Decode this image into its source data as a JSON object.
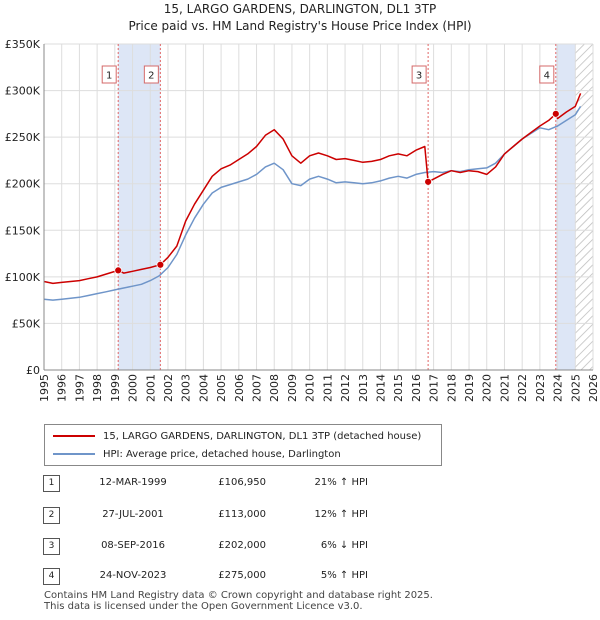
{
  "title_line1": "15, LARGO GARDENS, DARLINGTON, DL1 3TP",
  "title_line2": "Price paid vs. HM Land Registry's House Price Index (HPI)",
  "colors": {
    "property": "#cc0000",
    "hpi": "#6f95c9",
    "shade": "#dde6f6",
    "grid": "#dddddd",
    "vline": "#e06666"
  },
  "chart_data": {
    "type": "line",
    "xlim": [
      1995,
      2026
    ],
    "ylim": [
      0,
      350000
    ],
    "y_ticks": [
      0,
      50000,
      100000,
      150000,
      200000,
      250000,
      300000,
      350000
    ],
    "y_tick_labels": [
      "£0",
      "£50K",
      "£100K",
      "£150K",
      "£200K",
      "£250K",
      "£300K",
      "£350K"
    ],
    "x_ticks": [
      1995,
      1996,
      1997,
      1998,
      1999,
      2000,
      2001,
      2002,
      2003,
      2004,
      2005,
      2006,
      2007,
      2008,
      2009,
      2010,
      2011,
      2012,
      2013,
      2014,
      2015,
      2016,
      2017,
      2018,
      2019,
      2020,
      2021,
      2022,
      2023,
      2024,
      2025,
      2026
    ],
    "shaded_ranges": [
      [
        1999.19,
        2001.57
      ],
      [
        2023.9,
        2025.0
      ]
    ],
    "hatched_range": [
      2025.0,
      2026
    ],
    "series": [
      {
        "name": "15, LARGO GARDENS, DARLINGTON, DL1 3TP (detached house)",
        "color": "#cc0000",
        "x": [
          1995.0,
          1995.5,
          1996.0,
          1996.5,
          1997.0,
          1997.5,
          1998.0,
          1998.5,
          1999.19,
          1999.5,
          2000.0,
          2000.5,
          2001.0,
          2001.57,
          2002.0,
          2002.5,
          2003.0,
          2003.5,
          2004.0,
          2004.5,
          2005.0,
          2005.5,
          2006.0,
          2006.5,
          2007.0,
          2007.5,
          2008.0,
          2008.5,
          2009.0,
          2009.5,
          2010.0,
          2010.5,
          2011.0,
          2011.5,
          2012.0,
          2012.5,
          2013.0,
          2013.5,
          2014.0,
          2014.5,
          2015.0,
          2015.5,
          2016.0,
          2016.5,
          2016.69,
          2017.0,
          2017.5,
          2018.0,
          2018.5,
          2019.0,
          2019.5,
          2020.0,
          2020.5,
          2021.0,
          2021.5,
          2022.0,
          2022.5,
          2023.0,
          2023.5,
          2023.9,
          2024.0,
          2024.5,
          2025.0,
          2025.3
        ],
        "values": [
          95000,
          93000,
          94000,
          95000,
          96000,
          98000,
          100000,
          103000,
          106950,
          104000,
          106000,
          108000,
          110000,
          113000,
          121000,
          133000,
          160000,
          178000,
          193000,
          208000,
          216000,
          220000,
          226000,
          232000,
          240000,
          252000,
          258000,
          248000,
          230000,
          222000,
          230000,
          233000,
          230000,
          226000,
          227000,
          225000,
          223000,
          224000,
          226000,
          230000,
          232000,
          230000,
          236000,
          240000,
          202000,
          205000,
          210000,
          214000,
          212000,
          214000,
          213000,
          210000,
          218000,
          232000,
          240000,
          248000,
          255000,
          262000,
          268000,
          275000,
          270000,
          277000,
          283000,
          297000
        ]
      },
      {
        "name": "HPI: Average price, detached house, Darlington",
        "color": "#6f95c9",
        "x": [
          1995.0,
          1995.5,
          1996.0,
          1996.5,
          1997.0,
          1997.5,
          1998.0,
          1998.5,
          1999.0,
          1999.5,
          2000.0,
          2000.5,
          2001.0,
          2001.5,
          2002.0,
          2002.5,
          2003.0,
          2003.5,
          2004.0,
          2004.5,
          2005.0,
          2005.5,
          2006.0,
          2006.5,
          2007.0,
          2007.5,
          2008.0,
          2008.5,
          2009.0,
          2009.5,
          2010.0,
          2010.5,
          2011.0,
          2011.5,
          2012.0,
          2012.5,
          2013.0,
          2013.5,
          2014.0,
          2014.5,
          2015.0,
          2015.5,
          2016.0,
          2016.5,
          2017.0,
          2017.5,
          2018.0,
          2018.5,
          2019.0,
          2019.5,
          2020.0,
          2020.5,
          2021.0,
          2021.5,
          2022.0,
          2022.5,
          2023.0,
          2023.5,
          2024.0,
          2024.5,
          2025.0,
          2025.3
        ],
        "values": [
          76000,
          75000,
          76000,
          77000,
          78000,
          80000,
          82000,
          84000,
          86000,
          88000,
          90000,
          92000,
          96000,
          101000,
          110000,
          124000,
          145000,
          163000,
          178000,
          190000,
          196000,
          199000,
          202000,
          205000,
          210000,
          218000,
          222000,
          215000,
          200000,
          198000,
          205000,
          208000,
          205000,
          201000,
          202000,
          201000,
          200000,
          201000,
          203000,
          206000,
          208000,
          206000,
          210000,
          212000,
          213000,
          212000,
          214000,
          213000,
          215000,
          216000,
          217000,
          222000,
          232000,
          240000,
          248000,
          254000,
          260000,
          258000,
          262000,
          268000,
          274000,
          283000
        ]
      }
    ],
    "sale_markers": [
      {
        "label": "1",
        "x": 1999.19,
        "value": 106950
      },
      {
        "label": "2",
        "x": 2001.57,
        "value": 113000
      },
      {
        "label": "3",
        "x": 2016.69,
        "value": 202000
      },
      {
        "label": "4",
        "x": 2023.9,
        "value": 275000
      }
    ]
  },
  "legend": {
    "property": "15, LARGO GARDENS, DARLINGTON, DL1 3TP (detached house)",
    "hpi": "HPI: Average price, detached house, Darlington"
  },
  "sales": [
    {
      "num": "1",
      "date": "12-MAR-1999",
      "price": "£106,950",
      "hpi": "21% ↑ HPI"
    },
    {
      "num": "2",
      "date": "27-JUL-2001",
      "price": "£113,000",
      "hpi": "12% ↑ HPI"
    },
    {
      "num": "3",
      "date": "08-SEP-2016",
      "price": "£202,000",
      "hpi": "6% ↓ HPI"
    },
    {
      "num": "4",
      "date": "24-NOV-2023",
      "price": "£275,000",
      "hpi": "5% ↑ HPI"
    }
  ],
  "footer": {
    "line1": "Contains HM Land Registry data © Crown copyright and database right 2025.",
    "line2": "This data is licensed under the Open Government Licence v3.0."
  }
}
